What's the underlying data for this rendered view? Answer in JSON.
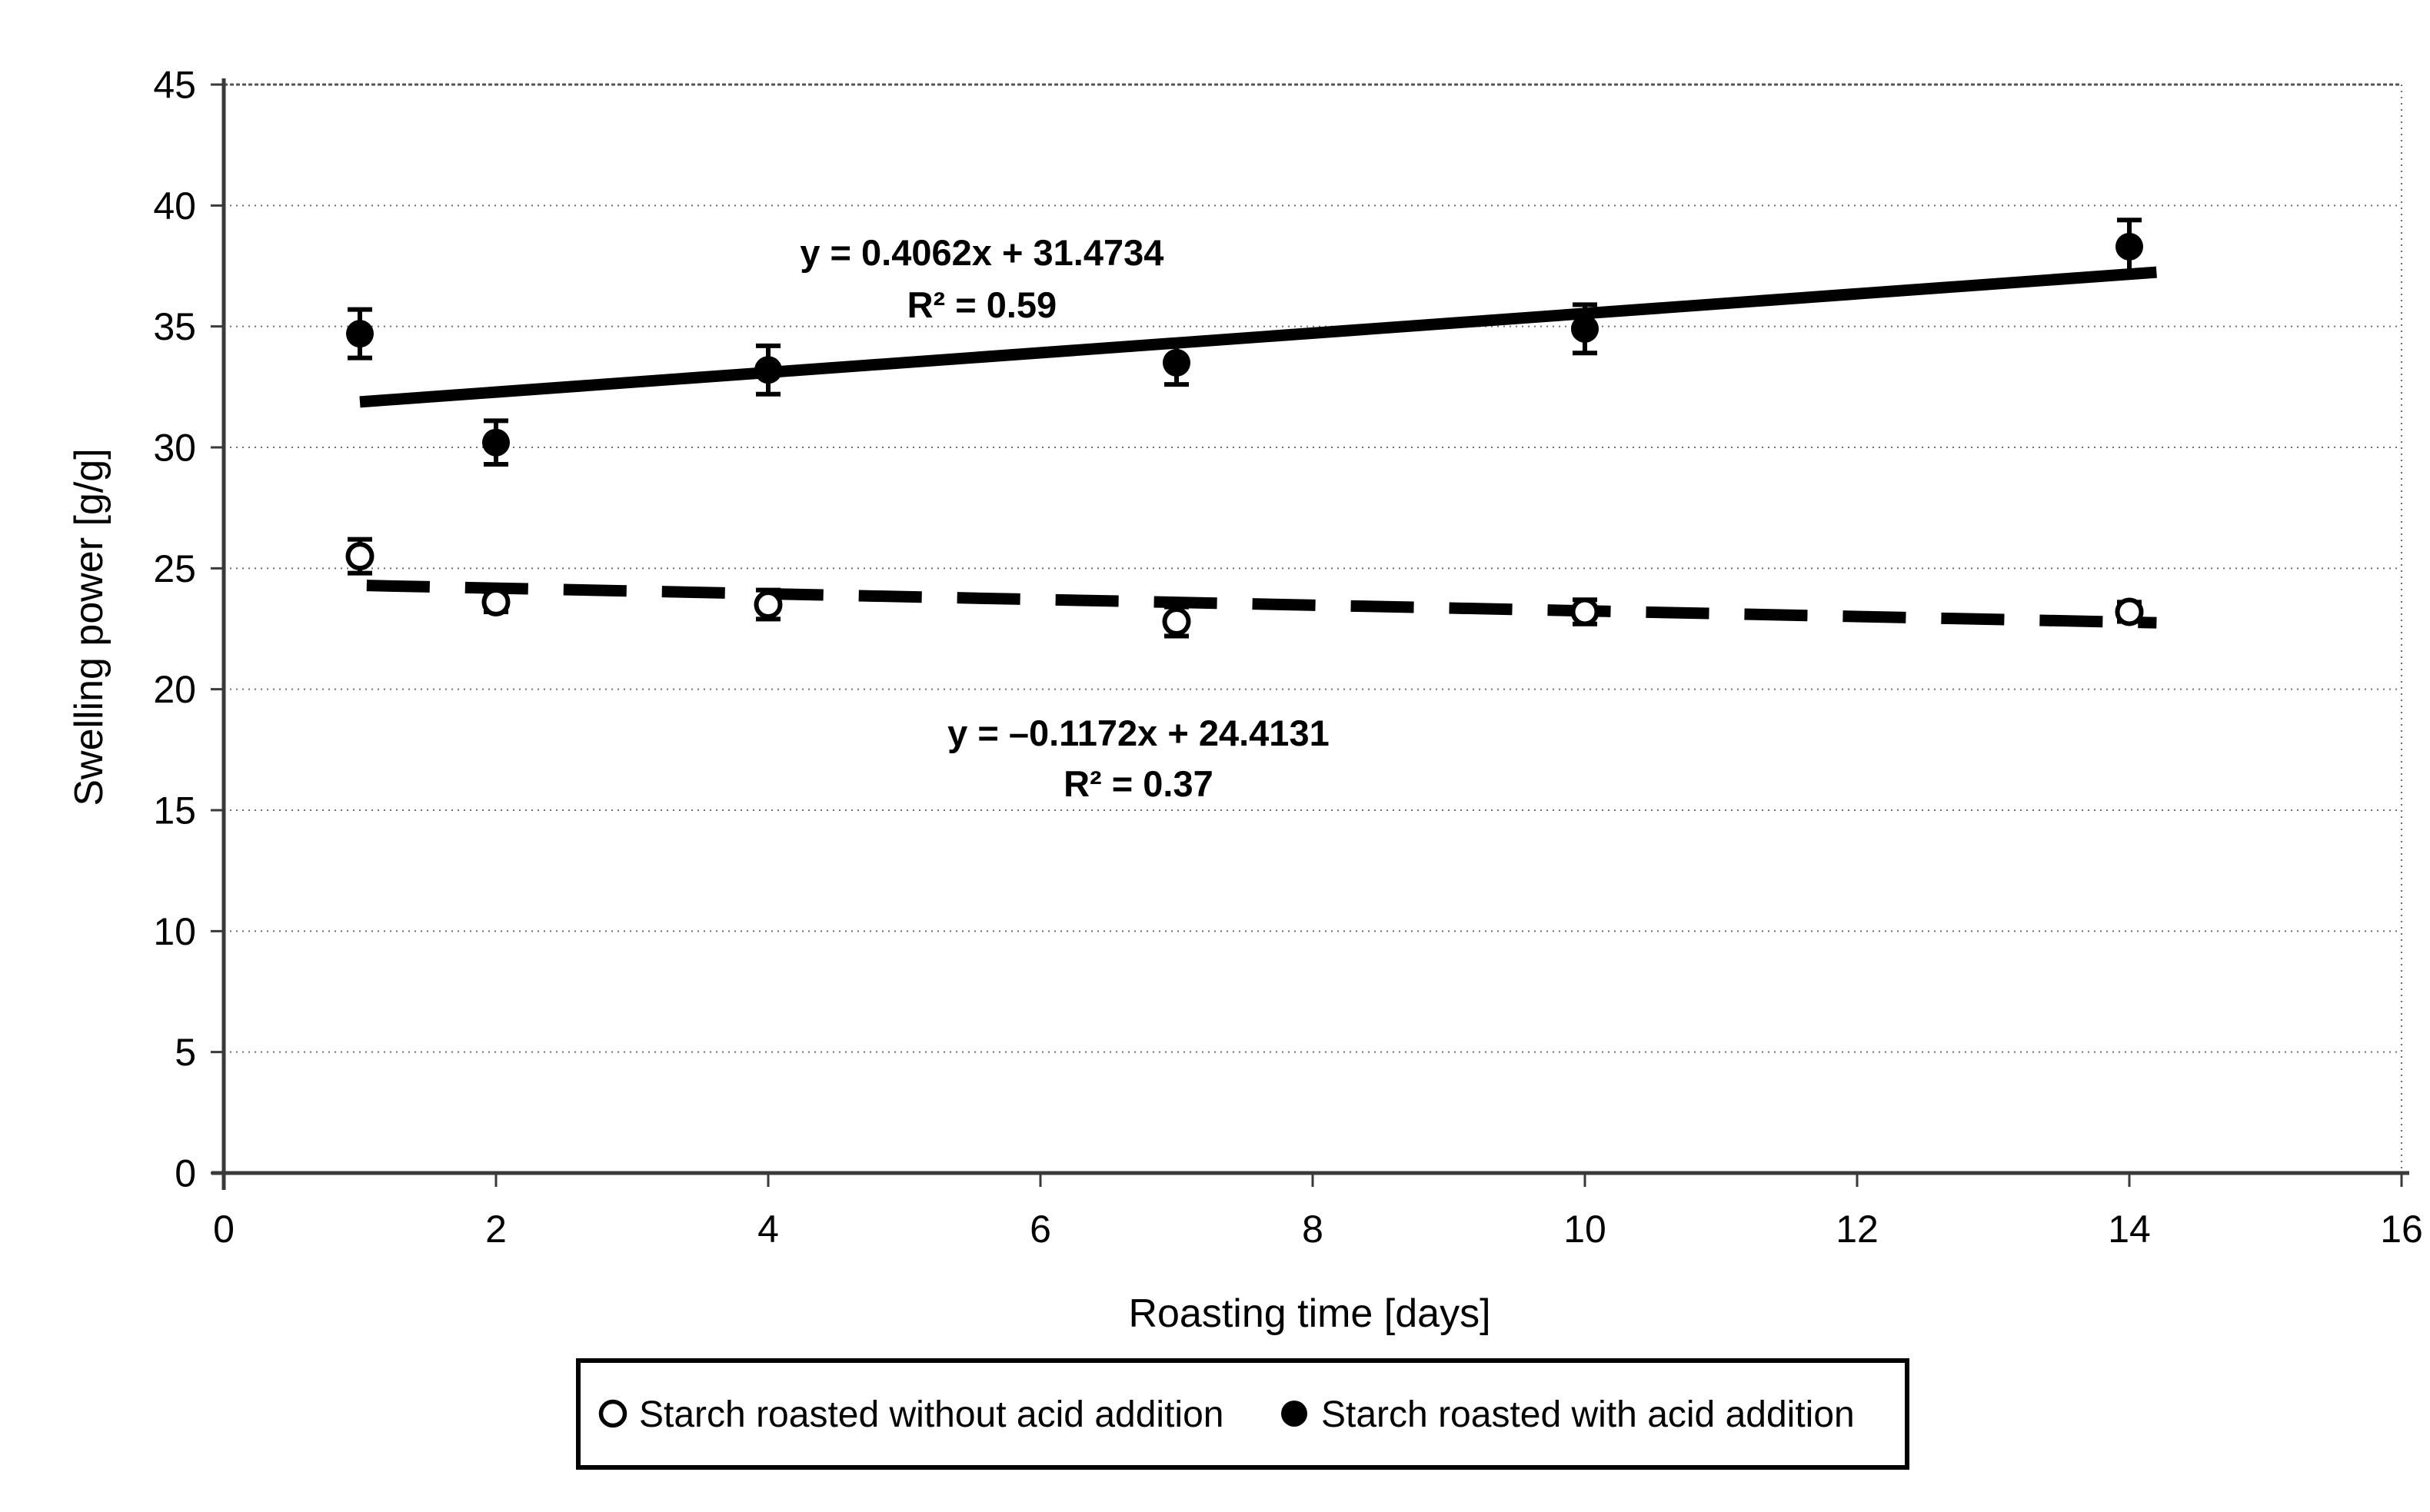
{
  "page": {
    "background": "#ffffff"
  },
  "chart_data": {
    "type": "scatter",
    "title": "",
    "xlabel": "Roasting time [days]",
    "ylabel": "Swelling power [g/g]",
    "xlim": [
      0,
      16
    ],
    "ylim": [
      0,
      45
    ],
    "xticks": [
      0,
      2,
      4,
      6,
      8,
      10,
      12,
      14,
      16
    ],
    "yticks": [
      0,
      5,
      10,
      15,
      20,
      25,
      30,
      35,
      40,
      45
    ],
    "grid": {
      "horizontal": true,
      "vertical": false,
      "style": "dotted"
    },
    "x": [
      1,
      2,
      4,
      7,
      10,
      14
    ],
    "series": [
      {
        "name": "Starch roasted without acid addition",
        "marker": "open-circle",
        "values": [
          25.5,
          23.6,
          23.5,
          22.8,
          23.2,
          23.2
        ],
        "errors": [
          0.7,
          0.4,
          0.6,
          0.6,
          0.5,
          0.4
        ],
        "trendline": {
          "style": "dashed",
          "slope": -0.1172,
          "intercept": 24.4131,
          "x_start": 1.05,
          "x_end": 14.2,
          "equation": "y = –0.1172x + 24.4131",
          "r_squared": "R² = 0.37",
          "label_x": 6.72,
          "label_y": [
            18.2,
            16.1
          ]
        }
      },
      {
        "name": "Starch roasted with acid addition",
        "marker": "filled-circle",
        "values": [
          34.7,
          30.2,
          33.2,
          33.5,
          34.9,
          38.3
        ],
        "errors": [
          1.0,
          0.9,
          1.0,
          0.9,
          1.0,
          1.1
        ],
        "trendline": {
          "style": "solid",
          "slope": 0.4062,
          "intercept": 31.4734,
          "x_start": 1.0,
          "x_end": 14.2,
          "equation": "y = 0.4062x + 31.4734",
          "r_squared": "R² = 0.59",
          "label_x": 5.57,
          "label_y": [
            38.05,
            35.9
          ]
        }
      }
    ],
    "legend": {
      "position": "bottom",
      "border": true,
      "entries": [
        {
          "icon": "open-circle-icon",
          "label": "Starch roasted without acid addition"
        },
        {
          "icon": "filled-circle-icon",
          "label": "Starch roasted with acid addition"
        }
      ]
    },
    "colors": {
      "foreground": "#000000",
      "background": "#ffffff",
      "grid": "#6f6f6f",
      "axis": "#3a3a3a"
    }
  }
}
